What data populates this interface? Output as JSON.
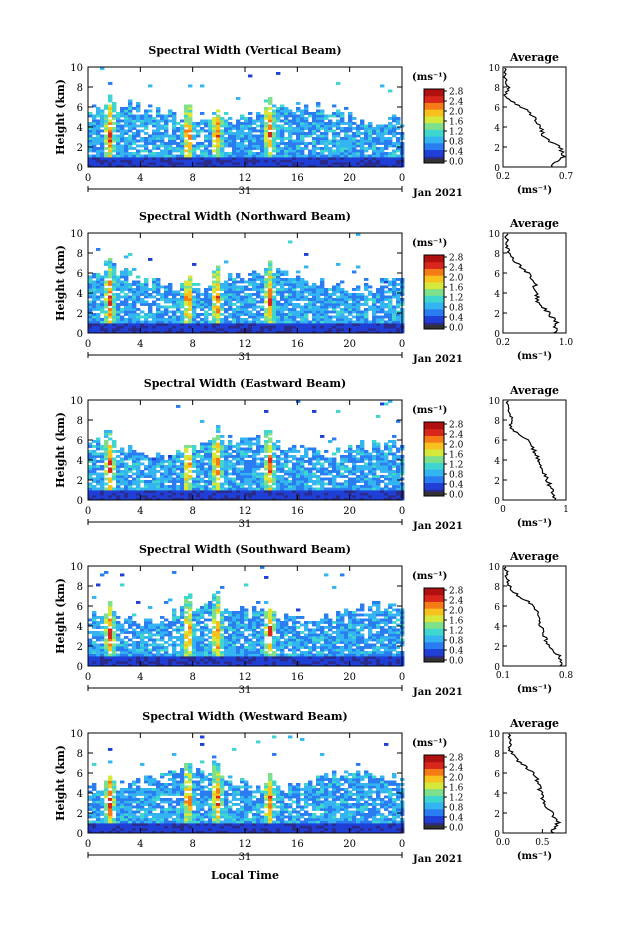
{
  "figure": {
    "date_label": "Jan 2021",
    "xaxis_title": "Local Time",
    "day_label": "31",
    "ylabel": "Height (km)",
    "colorbar_unit": "(ms⁻¹)",
    "avg_title": "Average",
    "avg_xlabel": "(ms⁻¹)",
    "colorscale": [
      "#2b2b8c",
      "#1f3fd6",
      "#2a7df0",
      "#34b4f0",
      "#3fd6d0",
      "#7ee08a",
      "#d6e83c",
      "#f7c21e",
      "#f57b17",
      "#d8261c",
      "#b01010"
    ]
  },
  "chart_data": [
    {
      "type": "heatmap",
      "title": "Spectral Width (Vertical Beam)",
      "x_ticks": [
        "0",
        "4",
        "8",
        "12",
        "16",
        "20",
        "0"
      ],
      "y_ticks": [
        "0",
        "2",
        "4",
        "6",
        "8",
        "10"
      ],
      "xlim": [
        0,
        24
      ],
      "ylim": [
        0,
        10
      ],
      "colorbar_ticks": [
        "0.0",
        "0.4",
        "0.8",
        "1.2",
        "1.6",
        "2.0",
        "2.4",
        "2.8"
      ],
      "avg": {
        "x_ticks": [
          "0.2",
          "0.7"
        ],
        "xlim": [
          0.2,
          0.7
        ],
        "profile": [
          [
            0.0,
            0.58
          ],
          [
            1.0,
            0.68
          ],
          [
            2.0,
            0.65
          ],
          [
            3.0,
            0.52
          ],
          [
            4.0,
            0.5
          ],
          [
            5.0,
            0.45
          ],
          [
            6.0,
            0.35
          ],
          [
            7.0,
            0.22
          ],
          [
            8.0,
            0.24
          ],
          [
            9.0,
            0.22
          ],
          [
            10.0,
            0.21
          ]
        ]
      }
    },
    {
      "type": "heatmap",
      "title": "Spectral Width (Northward Beam)",
      "x_ticks": [
        "0",
        "4",
        "8",
        "12",
        "16",
        "20",
        "0"
      ],
      "y_ticks": [
        "0",
        "2",
        "4",
        "6",
        "8",
        "10"
      ],
      "xlim": [
        0,
        24
      ],
      "ylim": [
        0,
        10
      ],
      "colorbar_ticks": [
        "0.0",
        "0.4",
        "0.8",
        "1.2",
        "1.6",
        "2.0",
        "2.4",
        "2.8"
      ],
      "avg": {
        "x_ticks": [
          "0.2",
          "1.0"
        ],
        "xlim": [
          0.2,
          1.0
        ],
        "profile": [
          [
            0.0,
            0.85
          ],
          [
            1.0,
            0.88
          ],
          [
            2.0,
            0.78
          ],
          [
            3.0,
            0.65
          ],
          [
            4.0,
            0.62
          ],
          [
            5.0,
            0.6
          ],
          [
            6.0,
            0.52
          ],
          [
            7.0,
            0.38
          ],
          [
            8.0,
            0.26
          ],
          [
            9.0,
            0.25
          ],
          [
            10.0,
            0.24
          ]
        ]
      }
    },
    {
      "type": "heatmap",
      "title": "Spectral Width (Eastward Beam)",
      "x_ticks": [
        "0",
        "4",
        "8",
        "12",
        "16",
        "20",
        "0"
      ],
      "y_ticks": [
        "0",
        "2",
        "4",
        "6",
        "8",
        "10"
      ],
      "xlim": [
        0,
        24
      ],
      "ylim": [
        0,
        10
      ],
      "colorbar_ticks": [
        "0.0",
        "0.4",
        "0.8",
        "1.2",
        "1.6",
        "2.0",
        "2.4",
        "2.8"
      ],
      "avg": {
        "x_ticks": [
          "0",
          "1"
        ],
        "xlim": [
          0,
          1
        ],
        "profile": [
          [
            0.0,
            0.82
          ],
          [
            1.0,
            0.78
          ],
          [
            2.0,
            0.7
          ],
          [
            3.0,
            0.62
          ],
          [
            4.0,
            0.55
          ],
          [
            5.0,
            0.5
          ],
          [
            6.0,
            0.38
          ],
          [
            7.0,
            0.15
          ],
          [
            8.0,
            0.12
          ],
          [
            9.0,
            0.1
          ],
          [
            10.0,
            0.08
          ]
        ]
      }
    },
    {
      "type": "heatmap",
      "title": "Spectral Width (Southward Beam)",
      "x_ticks": [
        "0",
        "4",
        "8",
        "12",
        "16",
        "20",
        "0"
      ],
      "y_ticks": [
        "0",
        "2",
        "4",
        "6",
        "8",
        "10"
      ],
      "xlim": [
        0,
        24
      ],
      "ylim": [
        0,
        10
      ],
      "colorbar_ticks": [
        "0.0",
        "0.4",
        "0.8",
        "1.2",
        "1.6",
        "2.0",
        "2.4",
        "2.8"
      ],
      "avg": {
        "x_ticks": [
          "0.1",
          "0.8"
        ],
        "xlim": [
          0.1,
          0.8
        ],
        "profile": [
          [
            0.0,
            0.75
          ],
          [
            1.0,
            0.72
          ],
          [
            2.0,
            0.62
          ],
          [
            3.0,
            0.55
          ],
          [
            4.0,
            0.52
          ],
          [
            5.0,
            0.5
          ],
          [
            6.0,
            0.45
          ],
          [
            7.0,
            0.28
          ],
          [
            8.0,
            0.16
          ],
          [
            9.0,
            0.14
          ],
          [
            10.0,
            0.12
          ]
        ]
      }
    },
    {
      "type": "heatmap",
      "title": "Spectral Width (Westward Beam)",
      "x_ticks": [
        "0",
        "4",
        "8",
        "12",
        "16",
        "20",
        "0"
      ],
      "y_ticks": [
        "0",
        "2",
        "4",
        "6",
        "8",
        "10"
      ],
      "xlim": [
        0,
        24
      ],
      "ylim": [
        0,
        10
      ],
      "colorbar_ticks": [
        "0.0",
        "0.4",
        "0.8",
        "1.2",
        "1.6",
        "2.0",
        "2.4",
        "2.8"
      ],
      "avg": {
        "x_ticks": [
          "0.0",
          "0.5"
        ],
        "xlim": [
          0.0,
          0.8
        ],
        "profile": [
          [
            0.0,
            0.62
          ],
          [
            1.0,
            0.7
          ],
          [
            2.0,
            0.62
          ],
          [
            3.0,
            0.52
          ],
          [
            4.0,
            0.48
          ],
          [
            5.0,
            0.45
          ],
          [
            6.0,
            0.4
          ],
          [
            7.0,
            0.22
          ],
          [
            8.0,
            0.1
          ],
          [
            9.0,
            0.08
          ],
          [
            10.0,
            0.06
          ]
        ]
      }
    }
  ]
}
